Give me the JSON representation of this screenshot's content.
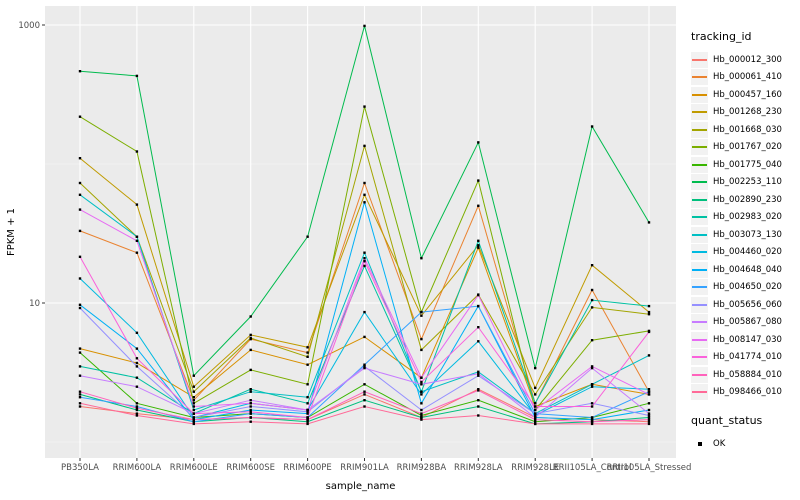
{
  "chart_data": {
    "type": "line",
    "title": "",
    "xlabel": "sample_name",
    "ylabel": "FPKM + 1",
    "y_scale": "log10",
    "ylim": [
      0.8,
      1390
    ],
    "grid": true,
    "y_major_breaks": [
      10,
      1000
    ],
    "y_minor_breaks": [
      1,
      100
    ],
    "y_tick_labels": [
      "10",
      "1000"
    ],
    "point_marker": "black-square",
    "categories": [
      "PB350LA",
      "RRIM600LA",
      "RRIM600LE",
      "RRIM600SE",
      "RRIM600PE",
      "RRIM901LA",
      "RRIM928BA",
      "RRIM928LA",
      "RRIM928LE",
      "RRII105LA_Control",
      "RRII105LA_Stressed"
    ],
    "series": [
      {
        "name": "Hb_000012_300",
        "color": "#F8766D",
        "values": [
          1.8,
          1.6,
          1.45,
          1.5,
          1.45,
          2.2,
          1.5,
          2.4,
          1.5,
          1.45,
          1.4
        ]
      },
      {
        "name": "Hb_000061_410",
        "color": "#EA8331",
        "values": [
          33,
          23,
          2.0,
          5.5,
          4.4,
          73,
          5.5,
          50,
          1.9,
          12.4,
          2.3
        ]
      },
      {
        "name": "Hb_000457_160",
        "color": "#D89000",
        "values": [
          4.7,
          3.7,
          2.1,
          4.6,
          3.6,
          5.7,
          2.9,
          25,
          1.8,
          2.6,
          2.2
        ]
      },
      {
        "name": "Hb_001268_230",
        "color": "#C09B00",
        "values": [
          110,
          51,
          2.5,
          5.9,
          4.8,
          60,
          8.1,
          26,
          2.45,
          18.7,
          8.6
        ]
      },
      {
        "name": "Hb_001668_030",
        "color": "#A3A500",
        "values": [
          73,
          30,
          2.3,
          5.6,
          4.1,
          135,
          4.6,
          11.5,
          2.2,
          9.3,
          8.3
        ]
      },
      {
        "name": "Hb_001767_020",
        "color": "#7CAE00",
        "values": [
          219,
          123,
          1.9,
          3.3,
          2.6,
          259,
          8.6,
          76,
          1.7,
          5.4,
          6.3
        ]
      },
      {
        "name": "Hb_001775_040",
        "color": "#39B600",
        "values": [
          4.4,
          1.9,
          1.5,
          1.6,
          1.5,
          2.6,
          1.55,
          2.0,
          1.4,
          1.5,
          1.9
        ]
      },
      {
        "name": "Hb_002253_110",
        "color": "#00BB4E",
        "values": [
          465,
          430,
          3.0,
          8.0,
          30,
          985,
          21,
          143,
          3.4,
          186,
          38
        ]
      },
      {
        "name": "Hb_002890_230",
        "color": "#00BF7D",
        "values": [
          2.2,
          1.7,
          1.4,
          1.5,
          1.4,
          2.0,
          1.5,
          1.8,
          1.35,
          1.4,
          1.5
        ]
      },
      {
        "name": "Hb_002983_020",
        "color": "#00C1A3",
        "values": [
          3.5,
          2.9,
          1.6,
          2.4,
          1.9,
          18.5,
          2.3,
          28,
          1.9,
          10.5,
          9.5
        ]
      },
      {
        "name": "Hb_003073_130",
        "color": "#00BFC4",
        "values": [
          60,
          30,
          1.7,
          2.3,
          2.1,
          23,
          2.3,
          3.2,
          1.6,
          2.6,
          4.2
        ]
      },
      {
        "name": "Hb_004460_020",
        "color": "#00BAE0",
        "values": [
          15,
          6.1,
          1.5,
          1.9,
          1.7,
          8.6,
          2.2,
          5.3,
          1.55,
          2.5,
          2.4
        ]
      },
      {
        "name": "Hb_004648_040",
        "color": "#00B0F6",
        "values": [
          9.7,
          4.7,
          1.45,
          1.7,
          1.6,
          53,
          1.9,
          9.5,
          1.5,
          1.45,
          1.7
        ]
      },
      {
        "name": "Hb_004650_020",
        "color": "#35A2FF",
        "values": [
          2.1,
          1.8,
          1.4,
          1.6,
          1.5,
          3.6,
          8.6,
          9.5,
          1.6,
          1.5,
          2.3
        ]
      },
      {
        "name": "Hb_005656_060",
        "color": "#9590FF",
        "values": [
          9.2,
          3.5,
          1.5,
          1.8,
          1.65,
          3.5,
          1.7,
          3.0,
          1.6,
          1.9,
          1.55
        ]
      },
      {
        "name": "Hb_005867_080",
        "color": "#C77CFF",
        "values": [
          3.0,
          2.5,
          1.6,
          2.0,
          1.7,
          3.4,
          2.6,
          3.1,
          1.5,
          3.4,
          1.6
        ]
      },
      {
        "name": "Hb_008147_030",
        "color": "#E76BF3",
        "values": [
          47,
          28,
          1.8,
          1.9,
          1.7,
          21,
          2.9,
          11.4,
          1.7,
          3.5,
          2.2
        ]
      },
      {
        "name": "Hb_041774_010",
        "color": "#FA62DB",
        "values": [
          21.5,
          4.0,
          1.6,
          1.65,
          1.5,
          20,
          2.7,
          6.7,
          1.8,
          1.8,
          6.2
        ]
      },
      {
        "name": "Hb_058884_010",
        "color": "#FF62BC",
        "values": [
          2.3,
          1.75,
          1.45,
          1.5,
          1.45,
          2.3,
          1.6,
          2.35,
          1.45,
          1.4,
          1.45
        ]
      },
      {
        "name": "Hb_098466_010",
        "color": "#FF6A98",
        "values": [
          1.9,
          1.55,
          1.35,
          1.4,
          1.35,
          1.8,
          1.45,
          1.55,
          1.35,
          1.35,
          1.35
        ]
      }
    ],
    "legend": {
      "title": "tracking_id",
      "position": "right"
    },
    "quant_legend": {
      "title": "quant_status",
      "items": [
        {
          "label": "OK",
          "marker": "black-square"
        }
      ]
    },
    "colors": {
      "panel_background": "#EBEBEB",
      "grid_major": "#FFFFFF",
      "grid_minor": "#F5F5F5",
      "tick_label": "#4D4D4D",
      "axis_title": "#000000",
      "point": "#000000",
      "legend_key_background": "#F2F2F2"
    }
  }
}
